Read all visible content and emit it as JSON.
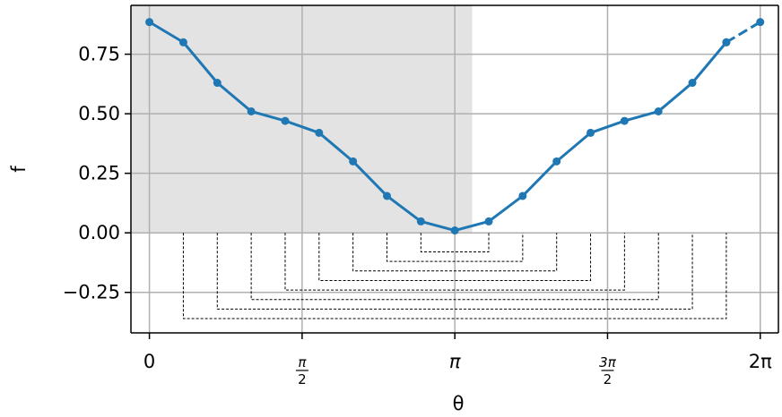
{
  "chart_data": {
    "type": "line",
    "title": "",
    "xlabel": "θ",
    "ylabel": "f",
    "xlim": [
      -0.19,
      6.47
    ],
    "ylim": [
      -0.42,
      0.955
    ],
    "xticks": [
      {
        "value": 0,
        "label": "0"
      },
      {
        "value": 1.5708,
        "num": "π",
        "den": "2"
      },
      {
        "value": 3.14159,
        "label": "π",
        "italic": true
      },
      {
        "value": 4.71239,
        "num": "3π",
        "den": "2"
      },
      {
        "value": 6.28319,
        "label": "2π"
      }
    ],
    "yticks": [
      {
        "value": -0.25,
        "label": "−0.25"
      },
      {
        "value": 0.0,
        "label": "0.00"
      },
      {
        "value": 0.25,
        "label": "0.25"
      },
      {
        "value": 0.5,
        "label": "0.50"
      },
      {
        "value": 0.75,
        "label": "0.75"
      }
    ],
    "grid": true,
    "shaded_region": {
      "x0": -0.19,
      "x1": 3.32,
      "y0": 0.0,
      "y1": 0.955,
      "color": "#e3e3e3"
    },
    "series": [
      {
        "color": "#1f77b4",
        "x": [
          0,
          0.3491,
          0.6981,
          1.0472,
          1.3963,
          1.7453,
          2.0944,
          2.4435,
          2.7925,
          3.1416,
          3.4907,
          3.8397,
          4.1888,
          4.5379,
          4.8869,
          5.236,
          5.5851,
          5.9341
        ],
        "y": [
          0.885,
          0.8,
          0.63,
          0.51,
          0.47,
          0.42,
          0.3,
          0.155,
          0.048,
          0.01,
          0.048,
          0.155,
          0.3,
          0.42,
          0.47,
          0.51,
          0.63,
          0.8
        ]
      },
      {
        "color": "#1f77b4",
        "dashed": true,
        "x": [
          5.9341,
          6.2832
        ],
        "y": [
          0.8,
          0.885
        ]
      }
    ],
    "brackets": [
      {
        "x1": 2.7925,
        "x2": 3.4907,
        "depth": -0.08
      },
      {
        "x1": 2.4435,
        "x2": 3.8397,
        "depth": -0.12
      },
      {
        "x1": 2.0944,
        "x2": 4.1888,
        "depth": -0.16
      },
      {
        "x1": 1.7453,
        "x2": 4.5379,
        "depth": -0.2
      },
      {
        "x1": 1.3963,
        "x2": 4.8869,
        "depth": -0.24
      },
      {
        "x1": 1.0472,
        "x2": 5.236,
        "depth": -0.28
      },
      {
        "x1": 0.6981,
        "x2": 5.5851,
        "depth": -0.32
      },
      {
        "x1": 0.3491,
        "x2": 5.9341,
        "depth": -0.36
      }
    ]
  }
}
